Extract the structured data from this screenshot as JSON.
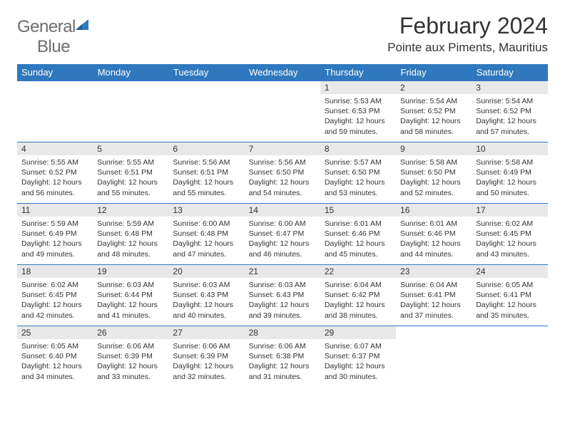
{
  "brand": {
    "line1": "General",
    "line2": "Blue"
  },
  "title": "February 2024",
  "location": "Pointe aux Piments, Mauritius",
  "colors": {
    "header_bg": "#2f78bd",
    "header_text": "#ffffff",
    "daynum_bg": "#e8e8e8",
    "text": "#333333",
    "logo_gray": "#6d6d6d",
    "logo_blue": "#2f78bd",
    "row_border": "#2f78bd"
  },
  "weekdays": [
    "Sunday",
    "Monday",
    "Tuesday",
    "Wednesday",
    "Thursday",
    "Friday",
    "Saturday"
  ],
  "grid": [
    [
      {
        "empty": true
      },
      {
        "empty": true
      },
      {
        "empty": true
      },
      {
        "empty": true
      },
      {
        "n": "1",
        "sr": "5:53 AM",
        "ss": "6:53 PM",
        "dl": "12 hours and 59 minutes."
      },
      {
        "n": "2",
        "sr": "5:54 AM",
        "ss": "6:52 PM",
        "dl": "12 hours and 58 minutes."
      },
      {
        "n": "3",
        "sr": "5:54 AM",
        "ss": "6:52 PM",
        "dl": "12 hours and 57 minutes."
      }
    ],
    [
      {
        "n": "4",
        "sr": "5:55 AM",
        "ss": "6:52 PM",
        "dl": "12 hours and 56 minutes."
      },
      {
        "n": "5",
        "sr": "5:55 AM",
        "ss": "6:51 PM",
        "dl": "12 hours and 55 minutes."
      },
      {
        "n": "6",
        "sr": "5:56 AM",
        "ss": "6:51 PM",
        "dl": "12 hours and 55 minutes."
      },
      {
        "n": "7",
        "sr": "5:56 AM",
        "ss": "6:50 PM",
        "dl": "12 hours and 54 minutes."
      },
      {
        "n": "8",
        "sr": "5:57 AM",
        "ss": "6:50 PM",
        "dl": "12 hours and 53 minutes."
      },
      {
        "n": "9",
        "sr": "5:58 AM",
        "ss": "6:50 PM",
        "dl": "12 hours and 52 minutes."
      },
      {
        "n": "10",
        "sr": "5:58 AM",
        "ss": "6:49 PM",
        "dl": "12 hours and 50 minutes."
      }
    ],
    [
      {
        "n": "11",
        "sr": "5:59 AM",
        "ss": "6:49 PM",
        "dl": "12 hours and 49 minutes."
      },
      {
        "n": "12",
        "sr": "5:59 AM",
        "ss": "6:48 PM",
        "dl": "12 hours and 48 minutes."
      },
      {
        "n": "13",
        "sr": "6:00 AM",
        "ss": "6:48 PM",
        "dl": "12 hours and 47 minutes."
      },
      {
        "n": "14",
        "sr": "6:00 AM",
        "ss": "6:47 PM",
        "dl": "12 hours and 46 minutes."
      },
      {
        "n": "15",
        "sr": "6:01 AM",
        "ss": "6:46 PM",
        "dl": "12 hours and 45 minutes."
      },
      {
        "n": "16",
        "sr": "6:01 AM",
        "ss": "6:46 PM",
        "dl": "12 hours and 44 minutes."
      },
      {
        "n": "17",
        "sr": "6:02 AM",
        "ss": "6:45 PM",
        "dl": "12 hours and 43 minutes."
      }
    ],
    [
      {
        "n": "18",
        "sr": "6:02 AM",
        "ss": "6:45 PM",
        "dl": "12 hours and 42 minutes."
      },
      {
        "n": "19",
        "sr": "6:03 AM",
        "ss": "6:44 PM",
        "dl": "12 hours and 41 minutes."
      },
      {
        "n": "20",
        "sr": "6:03 AM",
        "ss": "6:43 PM",
        "dl": "12 hours and 40 minutes."
      },
      {
        "n": "21",
        "sr": "6:03 AM",
        "ss": "6:43 PM",
        "dl": "12 hours and 39 minutes."
      },
      {
        "n": "22",
        "sr": "6:04 AM",
        "ss": "6:42 PM",
        "dl": "12 hours and 38 minutes."
      },
      {
        "n": "23",
        "sr": "6:04 AM",
        "ss": "6:41 PM",
        "dl": "12 hours and 37 minutes."
      },
      {
        "n": "24",
        "sr": "6:05 AM",
        "ss": "6:41 PM",
        "dl": "12 hours and 35 minutes."
      }
    ],
    [
      {
        "n": "25",
        "sr": "6:05 AM",
        "ss": "6:40 PM",
        "dl": "12 hours and 34 minutes."
      },
      {
        "n": "26",
        "sr": "6:06 AM",
        "ss": "6:39 PM",
        "dl": "12 hours and 33 minutes."
      },
      {
        "n": "27",
        "sr": "6:06 AM",
        "ss": "6:39 PM",
        "dl": "12 hours and 32 minutes."
      },
      {
        "n": "28",
        "sr": "6:06 AM",
        "ss": "6:38 PM",
        "dl": "12 hours and 31 minutes."
      },
      {
        "n": "29",
        "sr": "6:07 AM",
        "ss": "6:37 PM",
        "dl": "12 hours and 30 minutes."
      },
      {
        "empty": true
      },
      {
        "empty": true
      }
    ]
  ],
  "labels": {
    "sunrise": "Sunrise:",
    "sunset": "Sunset:",
    "daylight": "Daylight:"
  }
}
